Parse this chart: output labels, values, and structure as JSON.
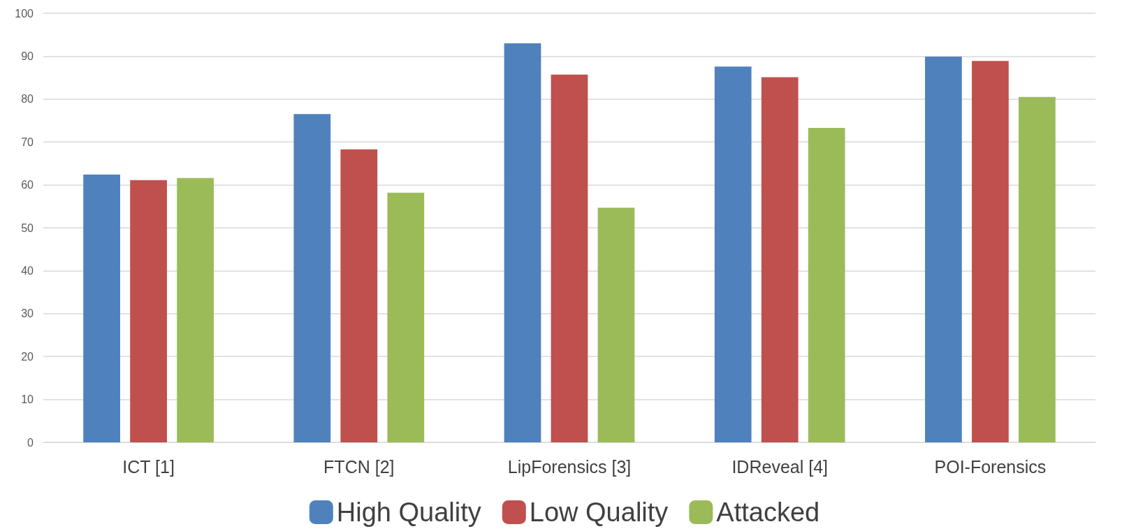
{
  "chart_data": {
    "type": "bar",
    "categories": [
      "ICT [1]",
      "FTCN [2]",
      "LipForensics [3]",
      "IDReveal [4]",
      "POI-Forensics"
    ],
    "series": [
      {
        "name": "High Quality",
        "color": "#4f81bd",
        "values": [
          62.4,
          76.5,
          93.0,
          87.6,
          89.9
        ]
      },
      {
        "name": "Low Quality",
        "color": "#c0504d",
        "values": [
          61.1,
          68.3,
          85.7,
          85.1,
          88.9
        ]
      },
      {
        "name": "Attacked",
        "color": "#9bbb59",
        "values": [
          61.6,
          58.2,
          54.7,
          73.3,
          80.5
        ]
      }
    ],
    "ylim": [
      0,
      100
    ],
    "yticks": [
      0,
      10,
      20,
      30,
      40,
      50,
      60,
      70,
      80,
      90,
      100
    ],
    "grid": "y",
    "legend": "bottom"
  }
}
